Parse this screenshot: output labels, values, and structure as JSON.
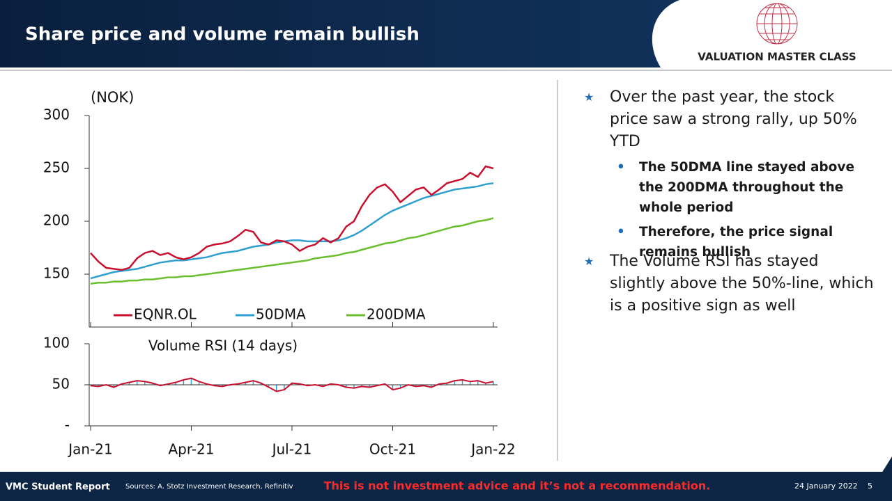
{
  "header": {
    "title": "Share price and volume remain bullish",
    "brand": "VALUATION MASTER CLASS"
  },
  "bullets": [
    {
      "text": "Over the past year, the stock price saw a strong rally, up 50% YTD",
      "sub": [
        "The 50DMA line stayed above the 200DMA throughout the whole period",
        "Therefore, the price signal remains bullish"
      ]
    },
    {
      "text": "The Volume RSI has stayed slightly above the 50%-line, which is a positive sign as well",
      "sub": []
    }
  ],
  "footer": {
    "report": "VMC Student Report",
    "sources": "Sources: A. Stotz Investment Research, Refinitiv",
    "disclaimer": "This is not investment advice and it’s not a recommendation.",
    "date": "24 January 2022",
    "page": "5"
  },
  "chart_data": [
    {
      "type": "line",
      "y_label": "(NOK)",
      "ylim": [
        100,
        300
      ],
      "yticks": [
        150,
        200,
        250,
        300
      ],
      "legend": "bottom",
      "series": [
        {
          "name": "EQNR.OL",
          "color": "#c8102e",
          "values": [
            170,
            162,
            156,
            155,
            154,
            156,
            165,
            170,
            172,
            168,
            170,
            166,
            164,
            166,
            170,
            176,
            178,
            179,
            181,
            186,
            192,
            190,
            180,
            178,
            182,
            181,
            178,
            172,
            176,
            178,
            184,
            180,
            184,
            195,
            200,
            214,
            225,
            232,
            235,
            228,
            218,
            224,
            230,
            232,
            225,
            230,
            236,
            238,
            240,
            246,
            242,
            252,
            250
          ]
        },
        {
          "name": "50DMA",
          "color": "#2e9fd0",
          "values": [
            146,
            148,
            150,
            152,
            153,
            154,
            155,
            157,
            159,
            161,
            162,
            163,
            163,
            164,
            165,
            166,
            168,
            170,
            171,
            172,
            174,
            176,
            177,
            178,
            180,
            181,
            182,
            182,
            181,
            181,
            181,
            181,
            182,
            184,
            187,
            191,
            196,
            201,
            206,
            210,
            213,
            216,
            219,
            222,
            224,
            226,
            228,
            230,
            231,
            232,
            233,
            235,
            236
          ]
        },
        {
          "name": "200DMA",
          "color": "#6abf2e",
          "values": [
            141,
            142,
            142,
            143,
            143,
            144,
            144,
            145,
            145,
            146,
            147,
            147,
            148,
            148,
            149,
            150,
            151,
            152,
            153,
            154,
            155,
            156,
            157,
            158,
            159,
            160,
            161,
            162,
            163,
            165,
            166,
            167,
            168,
            170,
            171,
            173,
            175,
            177,
            179,
            180,
            182,
            184,
            185,
            187,
            189,
            191,
            193,
            195,
            196,
            198,
            200,
            201,
            203
          ]
        }
      ]
    },
    {
      "type": "line",
      "title": "Volume RSI (14 days)",
      "ylim": [
        0,
        100
      ],
      "yticks": [
        {
          "value": 0,
          "label": "-"
        },
        50,
        100
      ],
      "baseline": 50,
      "color": "#c8102e",
      "bar_color": "#2e9fd0",
      "categories": [
        "Jan-21",
        null,
        null,
        null,
        null,
        null,
        null,
        null,
        null,
        null,
        null,
        null,
        null,
        "Apr-21",
        null,
        null,
        null,
        null,
        null,
        null,
        null,
        null,
        null,
        null,
        null,
        null,
        "Jul-21",
        null,
        null,
        null,
        null,
        null,
        null,
        null,
        null,
        null,
        null,
        null,
        null,
        "Oct-21",
        null,
        null,
        null,
        null,
        null,
        null,
        null,
        null,
        null,
        null,
        null,
        null,
        "Jan-22"
      ],
      "values": [
        49,
        48,
        50,
        47,
        51,
        53,
        55,
        54,
        52,
        49,
        51,
        53,
        56,
        58,
        54,
        51,
        49,
        48,
        50,
        51,
        53,
        55,
        52,
        47,
        42,
        44,
        52,
        51,
        49,
        50,
        48,
        51,
        50,
        47,
        46,
        48,
        47,
        49,
        51,
        44,
        46,
        50,
        48,
        49,
        47,
        51,
        52,
        55,
        56,
        54,
        55,
        52,
        54
      ]
    }
  ]
}
